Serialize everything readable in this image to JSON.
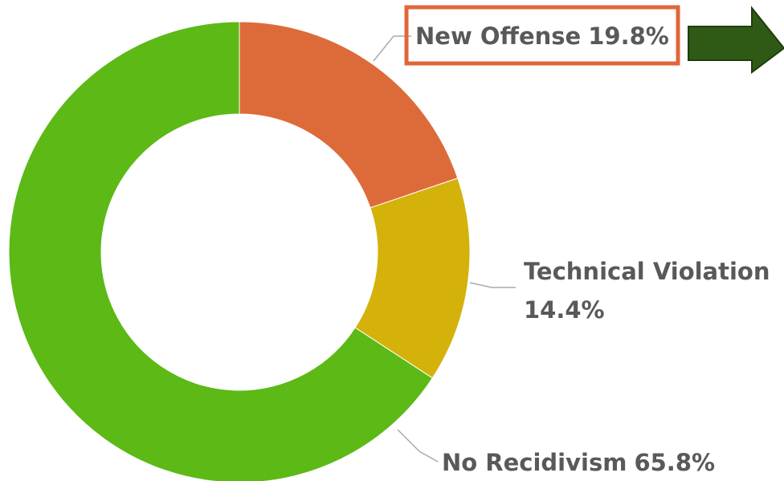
{
  "chart_data": {
    "type": "donut",
    "categories": [
      "New Offense",
      "Technical Violation",
      "No Recidivism"
    ],
    "values": [
      19.8,
      14.4,
      65.8
    ],
    "value_labels": [
      "19.8%",
      "14.4%",
      "65.8%"
    ],
    "colors": [
      "#dd6b3a",
      "#d4b20a",
      "#5cb916"
    ]
  }
}
